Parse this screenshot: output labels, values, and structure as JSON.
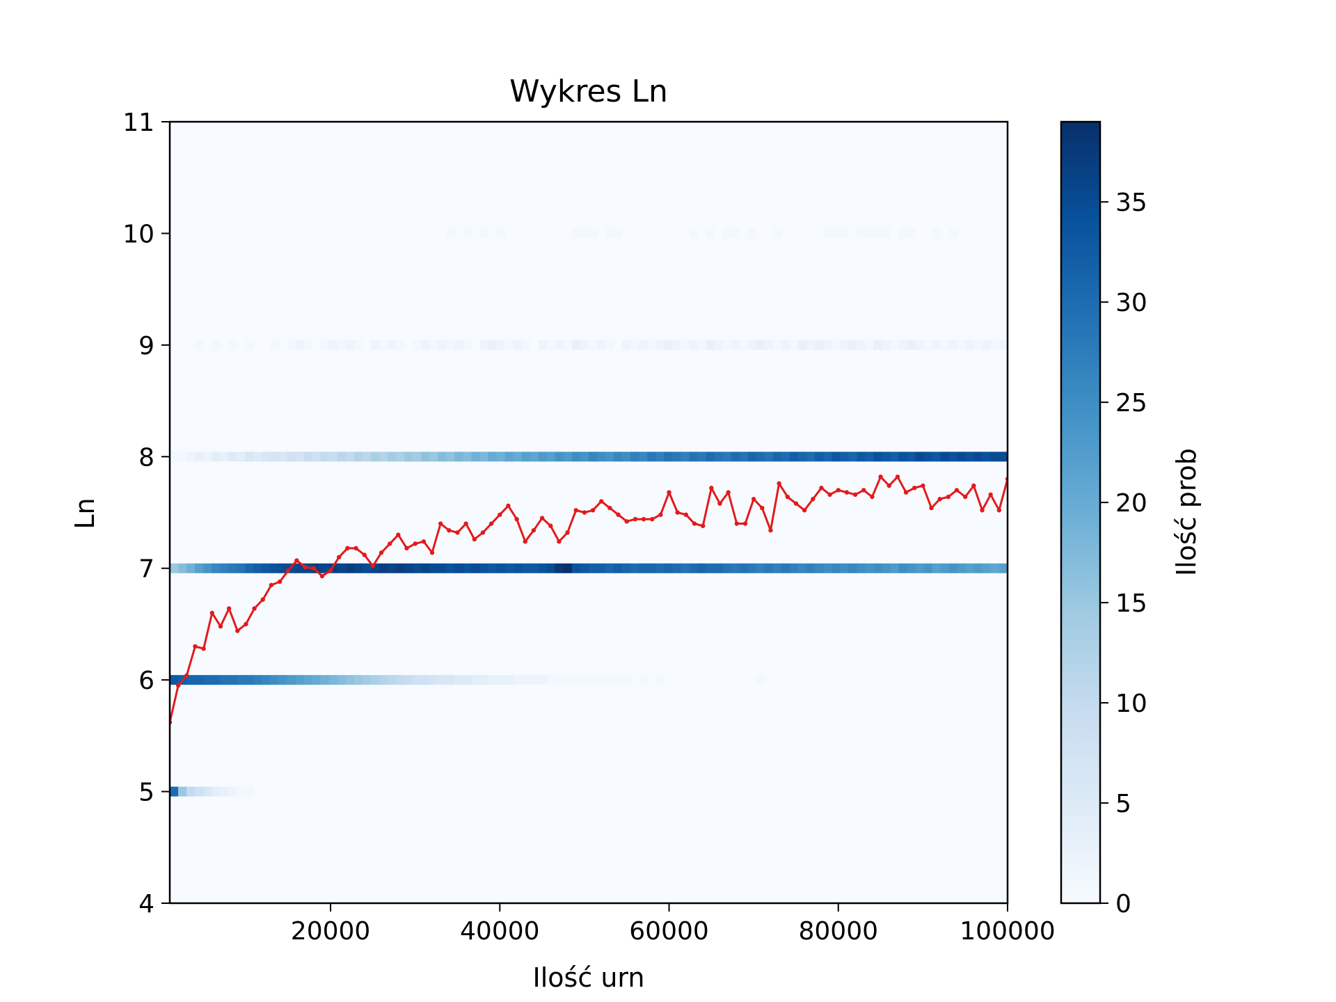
{
  "chart_data": {
    "type": "heatmap",
    "title": "Wykres Ln",
    "xlabel": "Ilość urn",
    "ylabel": "Ln",
    "xlim": [
      1000,
      100000
    ],
    "ylim": [
      4,
      11
    ],
    "xticks": [
      20000,
      40000,
      60000,
      80000,
      100000
    ],
    "xtick_labels": [
      "20000",
      "40000",
      "60000",
      "80000",
      "100000"
    ],
    "yticks": [
      4,
      5,
      6,
      7,
      8,
      9,
      10,
      11
    ],
    "ytick_labels": [
      "4",
      "5",
      "6",
      "7",
      "8",
      "9",
      "10",
      "11"
    ],
    "colorbar": {
      "label": "Ilość prob",
      "colormap": "Blues",
      "range": [
        0,
        39
      ],
      "ticks": [
        0,
        5,
        10,
        15,
        20,
        25,
        30,
        35
      ],
      "tick_labels": [
        "0",
        "5",
        "10",
        "15",
        "20",
        "25",
        "30",
        "35"
      ]
    },
    "heatmap_bins_x": 100,
    "heatmap_rows": [
      {
        "ln": 5,
        "counts": [
          30,
          15,
          10,
          8,
          6,
          4,
          3,
          2,
          1,
          1,
          0,
          0,
          0,
          0,
          0,
          0,
          0,
          0,
          0,
          0,
          0,
          0,
          0,
          0,
          0,
          0,
          0,
          0,
          0,
          0,
          0,
          0,
          0,
          0,
          0,
          0,
          0,
          0,
          0,
          0,
          0,
          0,
          0,
          0,
          0,
          0,
          0,
          0,
          0,
          0,
          0,
          0,
          0,
          0,
          0,
          0,
          0,
          0,
          0,
          0,
          0,
          0,
          0,
          0,
          0,
          0,
          0,
          0,
          0,
          0,
          0,
          0,
          0,
          0,
          0,
          0,
          0,
          0,
          0,
          0,
          0,
          0,
          0,
          0,
          0,
          0,
          0,
          0,
          0,
          0,
          0,
          0,
          0,
          0,
          0,
          0,
          0,
          0,
          0,
          0
        ]
      },
      {
        "ln": 6,
        "counts": [
          33,
          32,
          31,
          31,
          30,
          30,
          29,
          29,
          28,
          28,
          27,
          26,
          25,
          24,
          23,
          22,
          21,
          20,
          19,
          18,
          17,
          16,
          15,
          14,
          13,
          12,
          11,
          10,
          9,
          8,
          8,
          7,
          6,
          6,
          5,
          5,
          4,
          4,
          3,
          3,
          3,
          2,
          2,
          2,
          2,
          1,
          1,
          1,
          1,
          1,
          1,
          1,
          1,
          1,
          1,
          0,
          1,
          0,
          1,
          0,
          0,
          0,
          0,
          0,
          0,
          0,
          0,
          0,
          0,
          0,
          1,
          0,
          0,
          0,
          0,
          0,
          0,
          0,
          0,
          0,
          0,
          0,
          0,
          0,
          0,
          0,
          0,
          0,
          0,
          0,
          0,
          0,
          0,
          0,
          0,
          0,
          0,
          0,
          0,
          0
        ]
      },
      {
        "ln": 7,
        "counts": [
          15,
          17,
          19,
          22,
          24,
          26,
          27,
          28,
          29,
          31,
          32,
          33,
          34,
          35,
          35,
          36,
          36,
          37,
          36,
          37,
          36,
          37,
          36,
          35,
          36,
          37,
          36,
          37,
          36,
          35,
          36,
          35,
          35,
          34,
          35,
          34,
          35,
          34,
          33,
          34,
          33,
          34,
          33,
          33,
          34,
          35,
          38,
          39,
          34,
          33,
          32,
          32,
          31,
          32,
          31,
          30,
          31,
          31,
          30,
          31,
          30,
          29,
          30,
          31,
          30,
          30,
          29,
          28,
          29,
          28,
          27,
          28,
          27,
          28,
          27,
          26,
          27,
          26,
          25,
          26,
          25,
          26,
          25,
          24,
          25,
          24,
          23,
          25,
          24,
          23,
          24,
          22,
          23,
          24,
          23,
          22,
          23,
          22,
          21,
          22
        ]
      },
      {
        "ln": 8,
        "counts": [
          1,
          1,
          2,
          3,
          2,
          4,
          3,
          5,
          4,
          6,
          5,
          6,
          7,
          6,
          8,
          7,
          9,
          8,
          10,
          9,
          11,
          10,
          12,
          11,
          13,
          12,
          14,
          13,
          15,
          14,
          16,
          15,
          17,
          16,
          18,
          17,
          19,
          18,
          20,
          19,
          21,
          20,
          22,
          21,
          23,
          22,
          24,
          23,
          25,
          24,
          26,
          25,
          24,
          26,
          25,
          27,
          26,
          28,
          27,
          29,
          28,
          27,
          29,
          28,
          30,
          29,
          28,
          30,
          29,
          31,
          30,
          29,
          31,
          30,
          32,
          31,
          30,
          32,
          31,
          33,
          32,
          31,
          33,
          32,
          34,
          33,
          32,
          34,
          33,
          35,
          34,
          33,
          35,
          34,
          35,
          34,
          35,
          34,
          35,
          35
        ]
      },
      {
        "ln": 9,
        "counts": [
          0,
          0,
          0,
          1,
          0,
          1,
          0,
          1,
          0,
          1,
          0,
          0,
          1,
          0,
          1,
          2,
          1,
          0,
          1,
          2,
          1,
          2,
          1,
          0,
          2,
          1,
          2,
          1,
          0,
          1,
          2,
          1,
          2,
          1,
          2,
          1,
          0,
          2,
          3,
          2,
          1,
          2,
          1,
          0,
          2,
          1,
          2,
          1,
          3,
          2,
          1,
          2,
          1,
          0,
          2,
          1,
          2,
          1,
          2,
          3,
          2,
          1,
          2,
          1,
          3,
          2,
          1,
          2,
          1,
          2,
          3,
          2,
          1,
          2,
          1,
          3,
          2,
          3,
          2,
          1,
          2,
          3,
          2,
          1,
          3,
          2,
          1,
          2,
          3,
          2,
          1,
          2,
          1,
          2,
          1,
          2,
          1,
          2,
          1,
          2
        ]
      },
      {
        "ln": 10,
        "counts": [
          0,
          0,
          0,
          0,
          0,
          0,
          0,
          0,
          0,
          0,
          0,
          0,
          0,
          0,
          0,
          0,
          0,
          0,
          0,
          0,
          0,
          0,
          0,
          0,
          0,
          0,
          0,
          0,
          0,
          0,
          0,
          0,
          0,
          1,
          0,
          1,
          0,
          1,
          0,
          1,
          0,
          0,
          0,
          0,
          0,
          0,
          0,
          0,
          1,
          1,
          1,
          0,
          1,
          1,
          0,
          0,
          0,
          0,
          0,
          0,
          0,
          0,
          1,
          0,
          1,
          0,
          1,
          1,
          0,
          1,
          0,
          0,
          1,
          0,
          0,
          0,
          0,
          0,
          1,
          1,
          1,
          0,
          1,
          1,
          1,
          1,
          0,
          1,
          1,
          0,
          0,
          1,
          0,
          1,
          0,
          0,
          0,
          0,
          0,
          0
        ]
      }
    ],
    "series": [
      {
        "x": [
          1000,
          2000,
          3000,
          4000,
          5000,
          6000,
          7000,
          8000,
          9000,
          10000,
          11000,
          12000,
          13000,
          14000,
          15000,
          16000,
          17000,
          18000,
          19000,
          20000,
          21000,
          22000,
          23000,
          24000,
          25000,
          26000,
          27000,
          28000,
          29000,
          30000,
          31000,
          32000,
          33000,
          34000,
          35000,
          36000,
          37000,
          38000,
          39000,
          40000,
          41000,
          42000,
          43000,
          44000,
          45000,
          46000,
          47000,
          48000,
          49000,
          50000,
          51000,
          52000,
          53000,
          54000,
          55000,
          56000,
          57000,
          58000,
          59000,
          60000,
          61000,
          62000,
          63000,
          64000,
          65000,
          66000,
          67000,
          68000,
          69000,
          70000,
          71000,
          72000,
          73000,
          74000,
          75000,
          76000,
          77000,
          78000,
          79000,
          80000,
          81000,
          82000,
          83000,
          84000,
          85000,
          86000,
          87000,
          88000,
          89000,
          90000,
          91000,
          92000,
          93000,
          94000,
          95000,
          96000,
          97000,
          98000,
          99000,
          100000
        ],
        "y": [
          5.62,
          5.95,
          6.04,
          6.3,
          6.28,
          6.6,
          6.48,
          6.64,
          6.44,
          6.5,
          6.64,
          6.72,
          6.85,
          6.88,
          6.98,
          7.07,
          7.01,
          7.0,
          6.93,
          6.98,
          7.1,
          7.18,
          7.18,
          7.12,
          7.02,
          7.14,
          7.22,
          7.3,
          7.18,
          7.22,
          7.24,
          7.14,
          7.4,
          7.34,
          7.32,
          7.4,
          7.26,
          7.32,
          7.4,
          7.48,
          7.56,
          7.44,
          7.24,
          7.34,
          7.45,
          7.38,
          7.24,
          7.32,
          7.52,
          7.5,
          7.52,
          7.6,
          7.54,
          7.48,
          7.42,
          7.44,
          7.44,
          7.44,
          7.48,
          7.68,
          7.5,
          7.48,
          7.4,
          7.38,
          7.72,
          7.58,
          7.68,
          7.4,
          7.4,
          7.62,
          7.54,
          7.34,
          7.76,
          7.64,
          7.58,
          7.52,
          7.62,
          7.72,
          7.66,
          7.7,
          7.68,
          7.66,
          7.7,
          7.64,
          7.82,
          7.74,
          7.82,
          7.68,
          7.72,
          7.74,
          7.54,
          7.62,
          7.64,
          7.7,
          7.64,
          7.74,
          7.52,
          7.66,
          7.52,
          7.8
        ],
        "color": "#e31a1c"
      }
    ]
  }
}
